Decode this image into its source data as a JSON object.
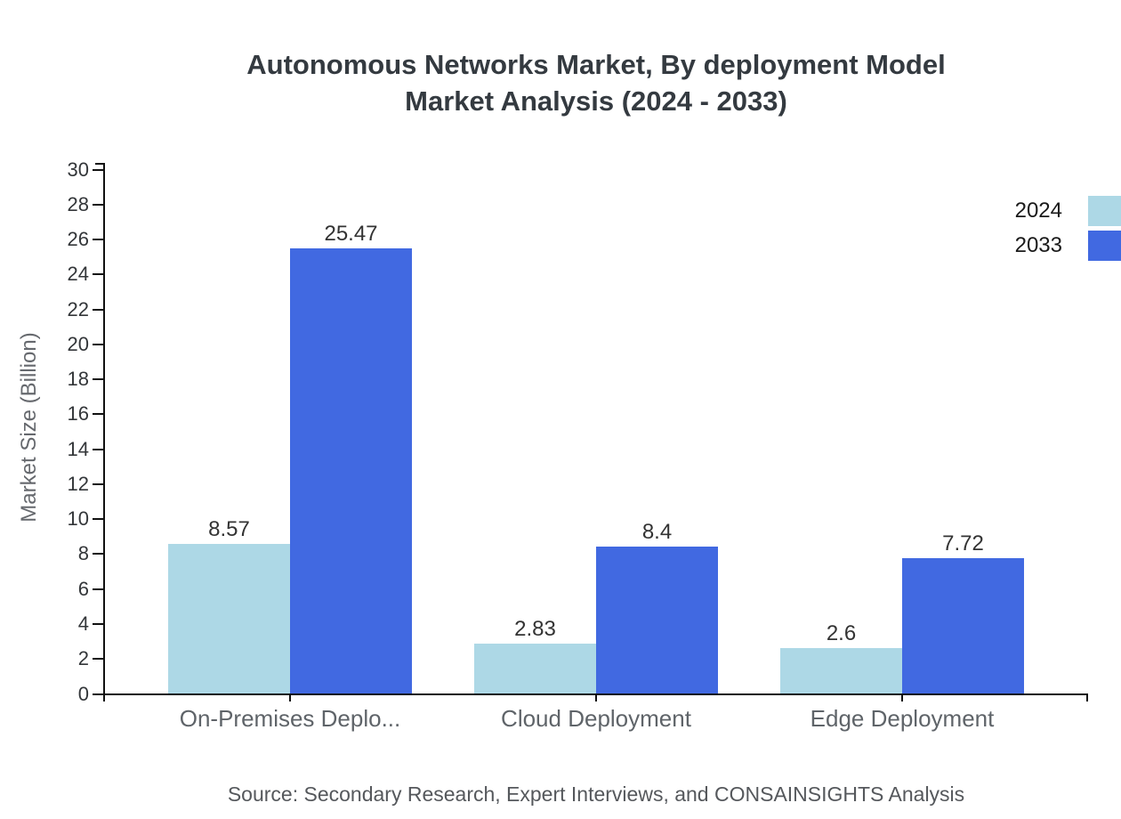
{
  "title": {
    "line1": "Autonomous Networks Market, By deployment Model",
    "line2": "Market Analysis (2024 - 2033)"
  },
  "source": "Source: Secondary Research, Expert Interviews, and CONSAINSIGHTS Analysis",
  "legend": [
    {
      "label": "2024",
      "color": "#ADD8E6"
    },
    {
      "label": "2033",
      "color": "#4169E1"
    }
  ],
  "colors": {
    "series_2024": "#ADD8E6",
    "series_2033": "#4169E1",
    "axis": "#111111",
    "title_text": "#343a40",
    "tick_text": "#333639",
    "category_text": "#5f6469",
    "source_text": "#55585c"
  },
  "chart_data": {
    "type": "bar",
    "title": "Autonomous Networks Market, By deployment Model Market Analysis (2024 - 2033)",
    "categories": [
      "On-Premises Deplo...",
      "Cloud Deployment",
      "Edge Deployment"
    ],
    "series": [
      {
        "name": "2024",
        "color": "#ADD8E6",
        "values": [
          8.57,
          2.83,
          2.6
        ]
      },
      {
        "name": "2033",
        "color": "#4169E1",
        "values": [
          25.47,
          8.4,
          7.72
        ]
      }
    ],
    "xlabel": "",
    "ylabel": "Market Size (Billion)",
    "ylim": [
      0,
      30
    ],
    "ytick_step": 2,
    "grid": false,
    "legend_position": "top-right",
    "bar_value_labels": [
      "8.57",
      "25.47",
      "2.83",
      "8.4",
      "2.6",
      "7.72"
    ]
  }
}
